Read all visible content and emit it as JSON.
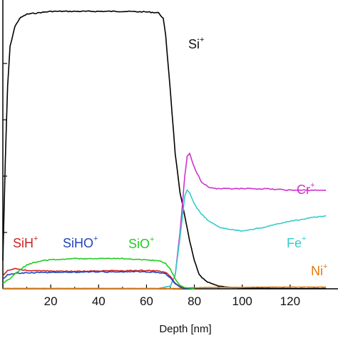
{
  "chart_data": {
    "type": "line",
    "title": "",
    "xlabel": "Depth [nm]",
    "ylabel": "",
    "xlim": [
      0,
      140
    ],
    "ylim": [
      0,
      1
    ],
    "x_ticks": [
      20,
      40,
      60,
      80,
      100,
      120
    ],
    "grid": false,
    "legend": "inline labels next to curves",
    "series": [
      {
        "name": "Si",
        "charge": "+",
        "color": "#000000",
        "x": [
          0,
          1,
          2,
          3,
          5,
          7,
          10,
          20,
          30,
          40,
          50,
          60,
          65,
          67,
          68,
          70,
          72,
          74,
          76,
          78,
          80,
          82,
          85,
          90,
          95,
          100,
          110,
          120,
          135
        ],
        "y": [
          0.1,
          0.45,
          0.72,
          0.86,
          0.93,
          0.96,
          0.975,
          0.985,
          0.985,
          0.985,
          0.985,
          0.983,
          0.98,
          0.96,
          0.9,
          0.7,
          0.48,
          0.34,
          0.26,
          0.17,
          0.1,
          0.05,
          0.025,
          0.01,
          0.005,
          0.003,
          0.002,
          0.001,
          0.001
        ]
      },
      {
        "name": "Cr",
        "charge": "+",
        "color": "#cc33cc",
        "x": [
          0,
          65,
          70,
          72,
          74,
          76,
          77,
          78,
          80,
          83,
          86,
          90,
          95,
          100,
          110,
          120,
          135
        ],
        "y": [
          0.001,
          0.001,
          0.01,
          0.05,
          0.2,
          0.4,
          0.47,
          0.48,
          0.43,
          0.38,
          0.36,
          0.355,
          0.355,
          0.355,
          0.355,
          0.35,
          0.35
        ]
      },
      {
        "name": "Fe",
        "charge": "+",
        "color": "#33cccc",
        "x": [
          0,
          65,
          70,
          72,
          74,
          76,
          77,
          78,
          80,
          83,
          86,
          90,
          95,
          100,
          110,
          120,
          135
        ],
        "y": [
          0.001,
          0.001,
          0.01,
          0.05,
          0.18,
          0.33,
          0.35,
          0.34,
          0.3,
          0.265,
          0.24,
          0.22,
          0.21,
          0.205,
          0.22,
          0.24,
          0.26
        ]
      },
      {
        "name": "Ni",
        "charge": "+",
        "color": "#e07a10",
        "x": [
          0,
          70,
          75,
          80,
          90,
          100,
          110,
          120,
          135
        ],
        "y": [
          0.001,
          0.001,
          0.002,
          0.004,
          0.005,
          0.005,
          0.006,
          0.006,
          0.006
        ]
      },
      {
        "name": "SiH",
        "charge": "+",
        "color": "#cc2222",
        "x": [
          0,
          2,
          5,
          8,
          10,
          20,
          30,
          40,
          50,
          60,
          65,
          68,
          70,
          72,
          74,
          76,
          80
        ],
        "y": [
          0.045,
          0.065,
          0.072,
          0.068,
          0.065,
          0.063,
          0.062,
          0.063,
          0.064,
          0.065,
          0.063,
          0.058,
          0.045,
          0.02,
          0.008,
          0.003,
          0.001
        ]
      },
      {
        "name": "SiHO",
        "charge": "+",
        "color": "#2244bb",
        "x": [
          0,
          2,
          5,
          10,
          20,
          30,
          40,
          50,
          60,
          65,
          68,
          70,
          72,
          74,
          76,
          80
        ],
        "y": [
          0.035,
          0.05,
          0.055,
          0.057,
          0.058,
          0.059,
          0.06,
          0.061,
          0.06,
          0.058,
          0.052,
          0.04,
          0.018,
          0.006,
          0.002,
          0.001
        ]
      },
      {
        "name": "SiO",
        "charge": "+",
        "color": "#22cc22",
        "x": [
          0,
          3,
          6,
          10,
          15,
          20,
          30,
          40,
          50,
          60,
          65,
          68,
          70,
          72,
          74,
          76,
          80
        ],
        "y": [
          0.02,
          0.035,
          0.06,
          0.085,
          0.098,
          0.103,
          0.107,
          0.108,
          0.107,
          0.103,
          0.099,
          0.09,
          0.07,
          0.035,
          0.012,
          0.004,
          0.001
        ]
      }
    ]
  }
}
